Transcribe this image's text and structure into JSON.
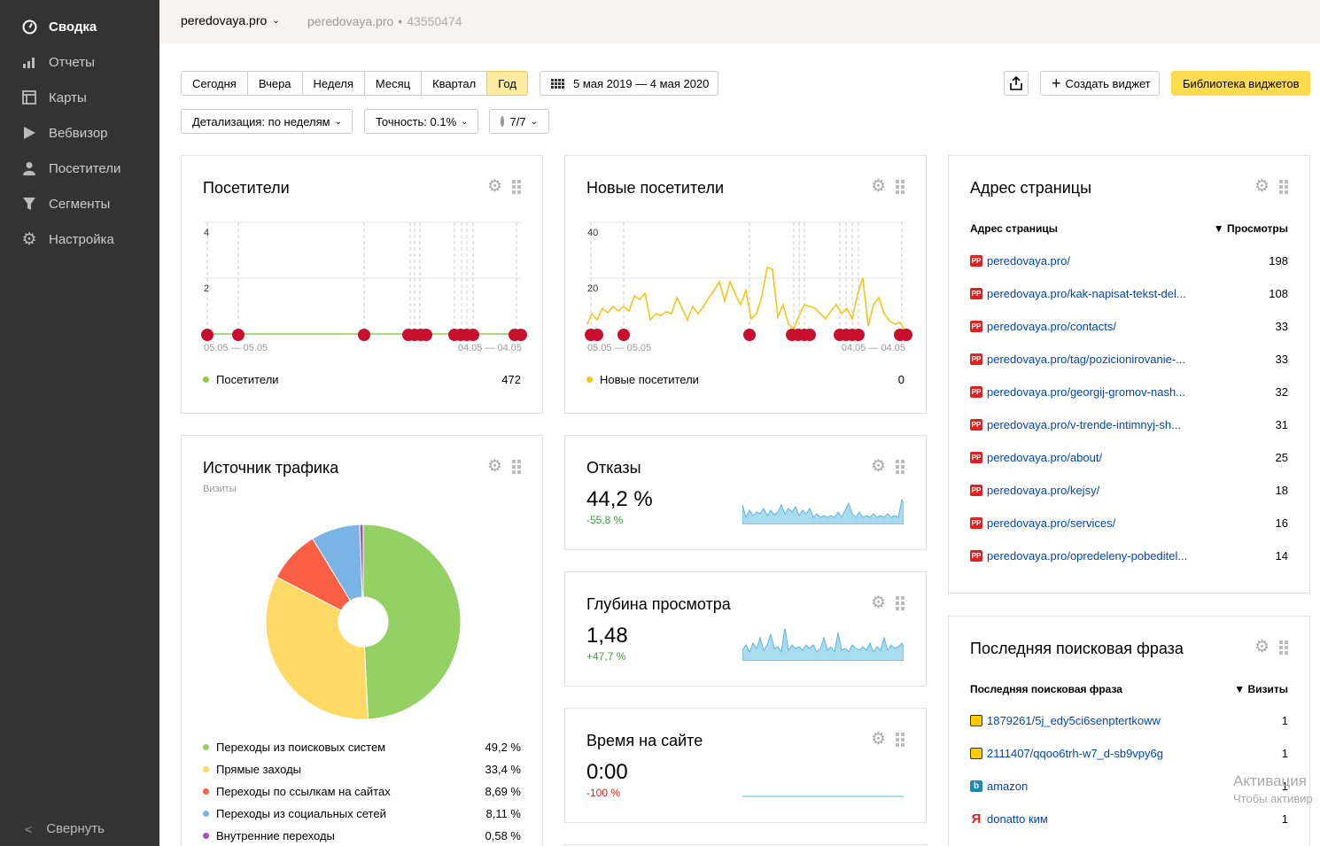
{
  "sidebar": {
    "items": [
      {
        "label": "Сводка",
        "icon": "gauge-icon",
        "active": true
      },
      {
        "label": "Отчеты",
        "icon": "bar-chart-icon"
      },
      {
        "label": "Карты",
        "icon": "map-icon"
      },
      {
        "label": "Вебвизор",
        "icon": "play-icon"
      },
      {
        "label": "Посетители",
        "icon": "user-icon"
      },
      {
        "label": "Сегменты",
        "icon": "filter-icon"
      },
      {
        "label": "Настройка",
        "icon": "gear-icon"
      }
    ],
    "collapse_label": "Свернуть"
  },
  "header": {
    "site": "peredovaya.pro",
    "site_sub": "peredovaya.pro",
    "counter_id": "43550474"
  },
  "filters": {
    "periods": [
      "Сегодня",
      "Вчера",
      "Неделя",
      "Месяц",
      "Квартал",
      "Год"
    ],
    "active_period": "Год",
    "date_range": "5 мая 2019 — 4 мая 2020",
    "detail": "Детализация: по неделям",
    "accuracy": "Точность: 0.1%",
    "segments": "7/7",
    "create_widget": "Создать виджет",
    "library": "Библиотека виджетов"
  },
  "widgets": {
    "visitors": {
      "title": "Посетители",
      "ytick_low": "2",
      "ytick_high": "4",
      "x_start": "05.05 — 05.05",
      "x_end": "04.05 — 04.05",
      "legend": "Посетители",
      "total": "472",
      "color": "#8fcc4a"
    },
    "new_visitors": {
      "title": "Новые посетители",
      "ytick_low": "20",
      "ytick_high": "40",
      "x_start": "05.05 — 05.05",
      "x_end": "04.05 — 04.05",
      "legend": "Новые посетители",
      "total": "0",
      "color": "#f5c518"
    },
    "traffic": {
      "title": "Источник трафика",
      "subtitle": "Визиты",
      "items": [
        {
          "label": "Переходы из поисковых систем",
          "value": "49,2 %",
          "color": "#95d065"
        },
        {
          "label": "Прямые заходы",
          "value": "33,4 %",
          "color": "#ffd966"
        },
        {
          "label": "Переходы по ссылкам на сайтах",
          "value": "8,69 %",
          "color": "#fa5e43"
        },
        {
          "label": "Переходы из социальных сетей",
          "value": "8,11 %",
          "color": "#7ab3e6"
        },
        {
          "label": "Внутренние переходы",
          "value": "0,58 %",
          "color": "#a64fc1"
        }
      ]
    },
    "bounce": {
      "title": "Отказы",
      "value": "44,2 %",
      "delta": "-55,8 %",
      "delta_color": "#3a9c3a"
    },
    "depth": {
      "title": "Глубина просмотра",
      "value": "1,48",
      "delta": "+47,7 %",
      "delta_color": "#3a9c3a"
    },
    "time": {
      "title": "Время на сайте",
      "value": "0:00",
      "delta": "-100 %",
      "delta_color": "#d22"
    },
    "pages": {
      "title": "Адрес страницы",
      "col_left": "Адрес страницы",
      "col_right": "▼ Просмотры",
      "rows": [
        {
          "url": "peredovaya.pro/",
          "value": "198"
        },
        {
          "url": "peredovaya.pro/kak-napisat-tekst-del...",
          "value": "108"
        },
        {
          "url": "peredovaya.pro/contacts/",
          "value": "33"
        },
        {
          "url": "peredovaya.pro/tag/pozicionirovanie-...",
          "value": "33"
        },
        {
          "url": "peredovaya.pro/georgij-gromov-nash...",
          "value": "32"
        },
        {
          "url": "peredovaya.pro/v-trende-intimnyj-sh...",
          "value": "31"
        },
        {
          "url": "peredovaya.pro/about/",
          "value": "25"
        },
        {
          "url": "peredovaya.pro/kejsy/",
          "value": "18"
        },
        {
          "url": "peredovaya.pro/services/",
          "value": "16"
        },
        {
          "url": "peredovaya.pro/opredeleny-pobeditel...",
          "value": "14"
        }
      ]
    },
    "search": {
      "title": "Последняя поисковая фраза",
      "col_left": "Последняя поисковая фраза",
      "col_right": "▼ Визиты",
      "rows": [
        {
          "phrase": "1879261/5j_edy5ci6senptertkoww",
          "value": "1",
          "icon": "image-search-icon"
        },
        {
          "phrase": "2111407/qqoo6trh-w7_d-sb9vpy6g",
          "value": "1",
          "icon": "image-search-icon"
        },
        {
          "phrase": "amazon",
          "value": "1",
          "icon": "bing-icon"
        },
        {
          "phrase": "donatto ким",
          "value": "1",
          "icon": "yandex-icon"
        }
      ]
    }
  },
  "watermark": {
    "line1": "Активация",
    "line2": "Чтобы активир"
  }
}
